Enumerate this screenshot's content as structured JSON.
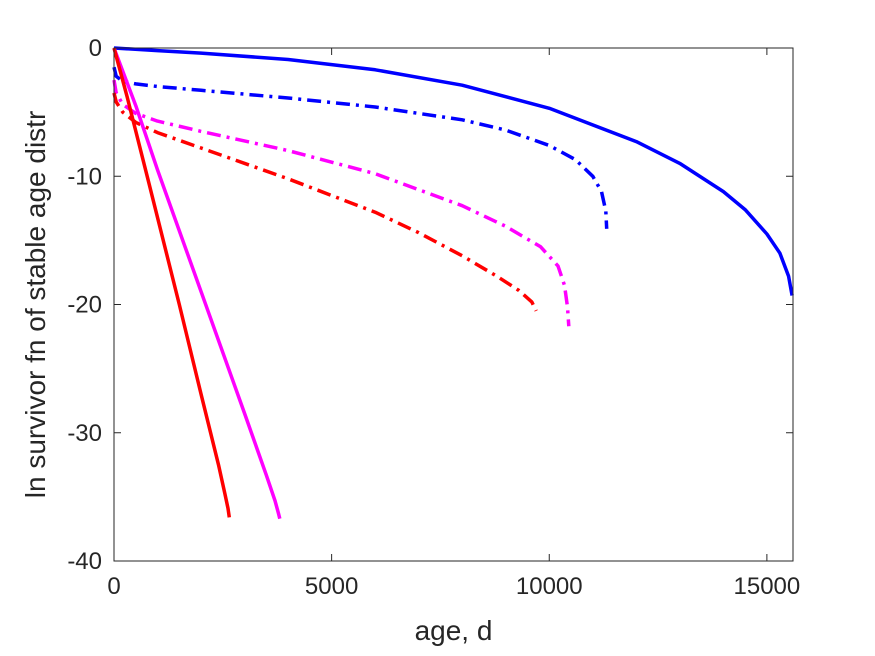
{
  "chart_data": {
    "type": "line",
    "title": "",
    "xlabel": "age, d",
    "ylabel": "ln survivor fn of stable age distr",
    "xlim": [
      0,
      15600
    ],
    "ylim": [
      -40,
      0
    ],
    "xticks": [
      0,
      5000,
      10000,
      15000
    ],
    "yticks": [
      -40,
      -30,
      -20,
      -10,
      0
    ],
    "xtick_labels": [
      "0",
      "5000",
      "10000",
      "15000"
    ],
    "ytick_labels": [
      "-40",
      "-30",
      "-20",
      "-10",
      "0"
    ],
    "grid": false,
    "legend": "none",
    "series": [
      {
        "color": "#0000ff",
        "style": "solid",
        "x": [
          0,
          1000,
          2000,
          4000,
          6000,
          8000,
          10000,
          12000,
          13000,
          14000,
          14500,
          15000,
          15300,
          15500,
          15580
        ],
        "y": [
          0,
          -0.2,
          -0.4,
          -0.9,
          -1.7,
          -2.9,
          -4.7,
          -7.3,
          -9.0,
          -11.2,
          -12.6,
          -14.5,
          -16.0,
          -17.8,
          -19.3
        ]
      },
      {
        "color": "#0000ff",
        "style": "dashdot",
        "x": [
          0,
          50,
          200,
          500,
          1000,
          2000,
          4000,
          6000,
          8000,
          9000,
          10000,
          10600,
          11000,
          11200,
          11300,
          11320
        ],
        "y": [
          -1.5,
          -2.2,
          -2.6,
          -2.8,
          -3.0,
          -3.3,
          -3.9,
          -4.6,
          -5.6,
          -6.4,
          -7.6,
          -8.7,
          -10.0,
          -11.2,
          -12.7,
          -14.1
        ]
      },
      {
        "color": "#ff00ff",
        "style": "dashdot",
        "x": [
          0,
          50,
          200,
          500,
          1000,
          2000,
          4000,
          6000,
          8000,
          9000,
          9800,
          10200,
          10350,
          10420,
          10450
        ],
        "y": [
          -2.5,
          -3.5,
          -4.4,
          -5.1,
          -5.7,
          -6.5,
          -8.0,
          -9.8,
          -12.3,
          -13.9,
          -15.5,
          -17.0,
          -18.5,
          -20.2,
          -21.7
        ]
      },
      {
        "color": "#ff0000",
        "style": "dashdot",
        "x": [
          0,
          50,
          200,
          500,
          1000,
          2000,
          4000,
          6000,
          7000,
          8000,
          8800,
          9300,
          9600,
          9700
        ],
        "y": [
          -3.5,
          -4.2,
          -5.0,
          -5.8,
          -6.6,
          -7.8,
          -10.2,
          -12.8,
          -14.4,
          -16.2,
          -17.8,
          -18.9,
          -19.8,
          -20.5
        ]
      },
      {
        "color": "#ff00ff",
        "style": "solid",
        "x": [
          0,
          500,
          1000,
          2000,
          3000,
          3500,
          3700,
          3780,
          3810
        ],
        "y": [
          0,
          -4.5,
          -9.5,
          -19.0,
          -28.5,
          -33.3,
          -35.3,
          -36.3,
          -36.7
        ]
      },
      {
        "color": "#ff0000",
        "style": "solid",
        "x": [
          0,
          300,
          800,
          1500,
          2000,
          2400,
          2550,
          2620,
          2650
        ],
        "y": [
          0,
          -3.8,
          -10.5,
          -20.0,
          -27.0,
          -32.5,
          -34.8,
          -35.9,
          -36.6
        ]
      }
    ]
  }
}
